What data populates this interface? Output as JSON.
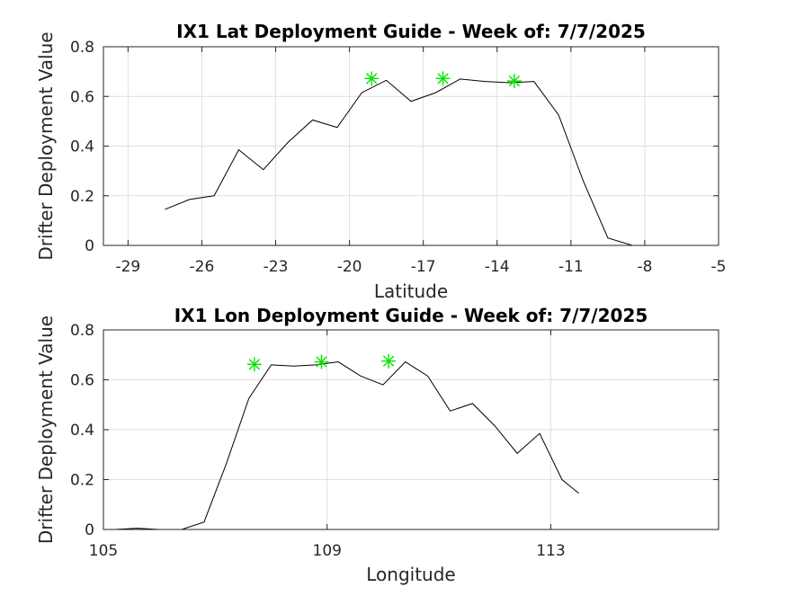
{
  "chart_data": [
    {
      "type": "line",
      "title": "IX1 Lat Deployment Guide - Week of: 7/7/2025",
      "xlabel": "Latitude",
      "ylabel": "Drifter Deployment Value",
      "xlim": [
        -30,
        -5
      ],
      "ylim": [
        0,
        0.8
      ],
      "xticks": [
        -29,
        -26,
        -23,
        -20,
        -17,
        -14,
        -11,
        -8,
        -5
      ],
      "yticks": [
        0,
        0.2,
        0.4,
        0.6,
        0.8
      ],
      "grid": true,
      "series": [
        {
          "x": [
            -27.5,
            -26.5,
            -25.5,
            -24.5,
            -23.5,
            -22.5,
            -21.5,
            -20.5,
            -19.5,
            -18.5,
            -17.5,
            -16.5,
            -15.5,
            -14.5,
            -13.5,
            -12.5,
            -11.5,
            -10.5,
            -9.5,
            -8.5,
            -7.5
          ],
          "y": [
            0.145,
            0.185,
            0.2,
            0.385,
            0.305,
            0.415,
            0.505,
            0.475,
            0.615,
            0.665,
            0.58,
            0.615,
            0.67,
            0.66,
            0.655,
            0.66,
            0.525,
            0.26,
            0.03,
            0.0,
            0.0
          ]
        }
      ],
      "markers": {
        "symbol": "star",
        "color": "#00e600",
        "x": [
          -19.1,
          -16.2,
          -13.3
        ],
        "y": [
          0.672,
          0.672,
          0.662
        ]
      }
    },
    {
      "type": "line",
      "title": "IX1 Lon Deployment Guide - Week of: 7/7/2025",
      "xlabel": "Longitude",
      "ylabel": "Drifter Deployment Value",
      "xlim": [
        105,
        116
      ],
      "ylim": [
        0,
        0.8
      ],
      "xticks": [
        105,
        109,
        113
      ],
      "yticks": [
        0,
        0.2,
        0.4,
        0.6,
        0.8
      ],
      "grid": true,
      "series": [
        {
          "x": [
            105.2,
            105.6,
            106.0,
            106.4,
            106.8,
            107.2,
            107.6,
            108.0,
            108.4,
            108.8,
            109.2,
            109.6,
            110.0,
            110.4,
            110.8,
            111.2,
            111.6,
            112.0,
            112.4,
            112.8,
            113.2,
            113.5
          ],
          "y": [
            0.0,
            0.005,
            0.0,
            0.0,
            0.03,
            0.265,
            0.525,
            0.66,
            0.655,
            0.66,
            0.672,
            0.615,
            0.58,
            0.672,
            0.615,
            0.475,
            0.505,
            0.415,
            0.305,
            0.385,
            0.2,
            0.145
          ]
        }
      ],
      "markers": {
        "symbol": "star",
        "color": "#00e600",
        "x": [
          107.7,
          108.9,
          110.1
        ],
        "y": [
          0.662,
          0.672,
          0.675
        ]
      }
    }
  ]
}
